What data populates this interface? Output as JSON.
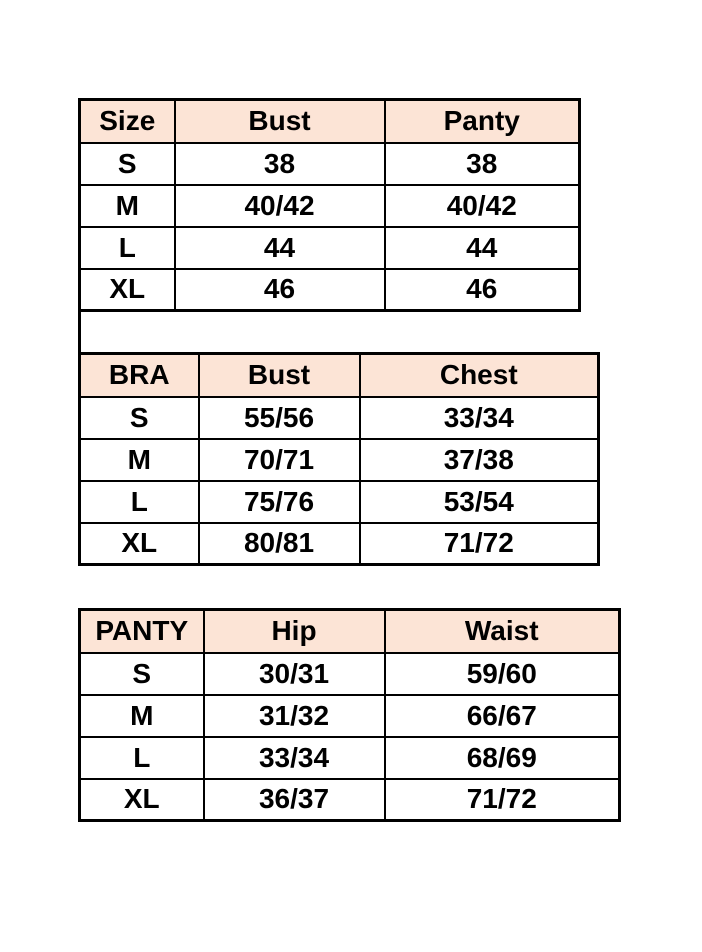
{
  "page": {
    "background": "#ffffff",
    "header_fill": "#fce4d6",
    "border_color": "#000000",
    "text_color": "#000000"
  },
  "tables": [
    {
      "name": "garment-size-chart",
      "headers": [
        "Size",
        "Bust",
        "Panty"
      ],
      "rows": [
        [
          "S",
          "38",
          "38"
        ],
        [
          "M",
          "40/42",
          "40/42"
        ],
        [
          "L",
          "44",
          "44"
        ],
        [
          "XL",
          "46",
          "46"
        ]
      ]
    },
    {
      "name": "bra-size-chart",
      "headers": [
        "BRA",
        "Bust",
        "Chest"
      ],
      "rows": [
        [
          "S",
          "55/56",
          "33/34"
        ],
        [
          "M",
          "70/71",
          "37/38"
        ],
        [
          "L",
          "75/76",
          "53/54"
        ],
        [
          "XL",
          "80/81",
          "71/72"
        ]
      ]
    },
    {
      "name": "panty-size-chart",
      "headers": [
        "PANTY",
        "Hip",
        "Waist"
      ],
      "rows": [
        [
          "S",
          "30/31",
          "59/60"
        ],
        [
          "M",
          "31/32",
          "66/67"
        ],
        [
          "L",
          "33/34",
          "68/69"
        ],
        [
          "XL",
          "36/37",
          "71/72"
        ]
      ]
    }
  ]
}
